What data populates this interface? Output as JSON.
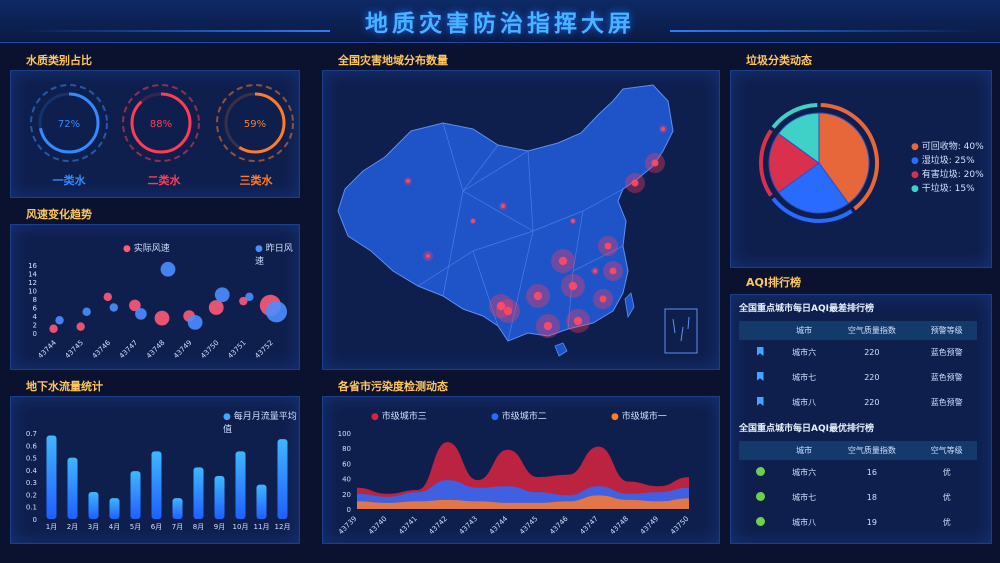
{
  "header": {
    "title": "地质灾害防治指挥大屏"
  },
  "water": {
    "title": "水质类别占比",
    "rings": [
      {
        "label": "一类水",
        "percent": 72,
        "color": "#2f8bff"
      },
      {
        "label": "二类水",
        "percent": 88,
        "color": "#ff3b55"
      },
      {
        "label": "三类水",
        "percent": 59,
        "color": "#ff7a2a"
      }
    ]
  },
  "wind": {
    "title": "风速变化趋势",
    "legend_actual": "实际风速",
    "legend_yesterday": "昨日风速"
  },
  "groundwater": {
    "title": "地下水流量统计",
    "legend": "每月月流量平均值"
  },
  "map": {
    "title": "全国灾害地域分布数量"
  },
  "pollution": {
    "title": "各省市污染度检测动态",
    "legend": [
      "市级城市三",
      "市级城市二",
      "市级城市一"
    ]
  },
  "garbage": {
    "title": "垃圾分类动态",
    "legend": [
      "可回收物: 40%",
      "湿垃圾: 25%",
      "有害垃圾: 20%",
      "干垃圾: 15%"
    ]
  },
  "aqi": {
    "title": "AQI排行榜",
    "worst": {
      "title": "全国重点城市每日AQI最差排行榜",
      "headers": [
        "城市",
        "空气质量指数",
        "预警等级"
      ],
      "rows": [
        [
          "城市六",
          "220",
          "蓝色预警"
        ],
        [
          "城市七",
          "220",
          "蓝色预警"
        ],
        [
          "城市八",
          "220",
          "蓝色预警"
        ]
      ]
    },
    "best": {
      "title": "全国重点城市每日AQI最优排行榜",
      "headers": [
        "城市",
        "空气质量指数",
        "空气等级"
      ],
      "rows": [
        [
          "城市六",
          "16",
          "优"
        ],
        [
          "城市七",
          "18",
          "优"
        ],
        [
          "城市八",
          "19",
          "优"
        ]
      ]
    }
  },
  "chart_data": [
    {
      "type": "scatter",
      "title": "风速变化趋势",
      "x": [
        "43744",
        "43745",
        "43746",
        "43747",
        "43748",
        "43749",
        "43750",
        "43751",
        "43752"
      ],
      "yticks": [
        0,
        2,
        4,
        6,
        8,
        10,
        12,
        14,
        16
      ],
      "ylim": [
        0,
        16
      ],
      "series": [
        {
          "name": "实际风速",
          "color": "#ff5a78",
          "points": [
            1,
            1.5,
            8.5,
            6.5,
            3.5,
            4,
            6,
            7.5,
            6.5
          ],
          "sizes": [
            2,
            2,
            2,
            3,
            4,
            3,
            4,
            2,
            6
          ]
        },
        {
          "name": "昨日风速",
          "color": "#4a8dff",
          "points": [
            3,
            5,
            6,
            4.5,
            15,
            2.5,
            9,
            8.5,
            5
          ],
          "sizes": [
            2,
            2,
            2,
            3,
            4,
            4,
            4,
            2,
            6
          ]
        }
      ]
    },
    {
      "type": "bar",
      "title": "地下水流量统计",
      "categories": [
        "1月",
        "2月",
        "3月",
        "4月",
        "5月",
        "6月",
        "7月",
        "8月",
        "9月",
        "10月",
        "11月",
        "12月"
      ],
      "values": [
        0.68,
        0.5,
        0.22,
        0.17,
        0.39,
        0.55,
        0.17,
        0.42,
        0.35,
        0.55,
        0.28,
        0.65
      ],
      "yticks": [
        0,
        0.1,
        0.2,
        0.3,
        0.4,
        0.5,
        0.6,
        0.7
      ],
      "ylim": [
        0,
        0.7
      ]
    },
    {
      "type": "area",
      "title": "各省市污染度检测动态",
      "x": [
        "43739",
        "43740",
        "43741",
        "43742",
        "43743",
        "43744",
        "43745",
        "43746",
        "43747",
        "43748",
        "43749",
        "43750"
      ],
      "yticks": [
        0,
        20,
        40,
        60,
        80,
        100
      ],
      "ylim": [
        0,
        100
      ],
      "series": [
        {
          "name": "市级城市三",
          "color": "#d9243f",
          "values": [
            28,
            20,
            25,
            88,
            38,
            78,
            42,
            45,
            82,
            36,
            30,
            42
          ]
        },
        {
          "name": "市级城市二",
          "color": "#2a6bff",
          "values": [
            20,
            16,
            22,
            38,
            28,
            30,
            22,
            18,
            30,
            20,
            22,
            28
          ]
        },
        {
          "name": "市级城市一",
          "color": "#ff7a2a",
          "values": [
            10,
            8,
            10,
            12,
            10,
            8,
            8,
            10,
            18,
            12,
            10,
            14
          ]
        }
      ]
    },
    {
      "type": "pie",
      "title": "垃圾分类动态",
      "slices": [
        {
          "label": "可回收物",
          "value": 40,
          "color": "#e8673a"
        },
        {
          "label": "湿垃圾",
          "value": 25,
          "color": "#2a6bff"
        },
        {
          "label": "有害垃圾",
          "value": 20,
          "color": "#d9304d"
        },
        {
          "label": "干垃圾",
          "value": 15,
          "color": "#3fd1c8"
        }
      ]
    }
  ]
}
